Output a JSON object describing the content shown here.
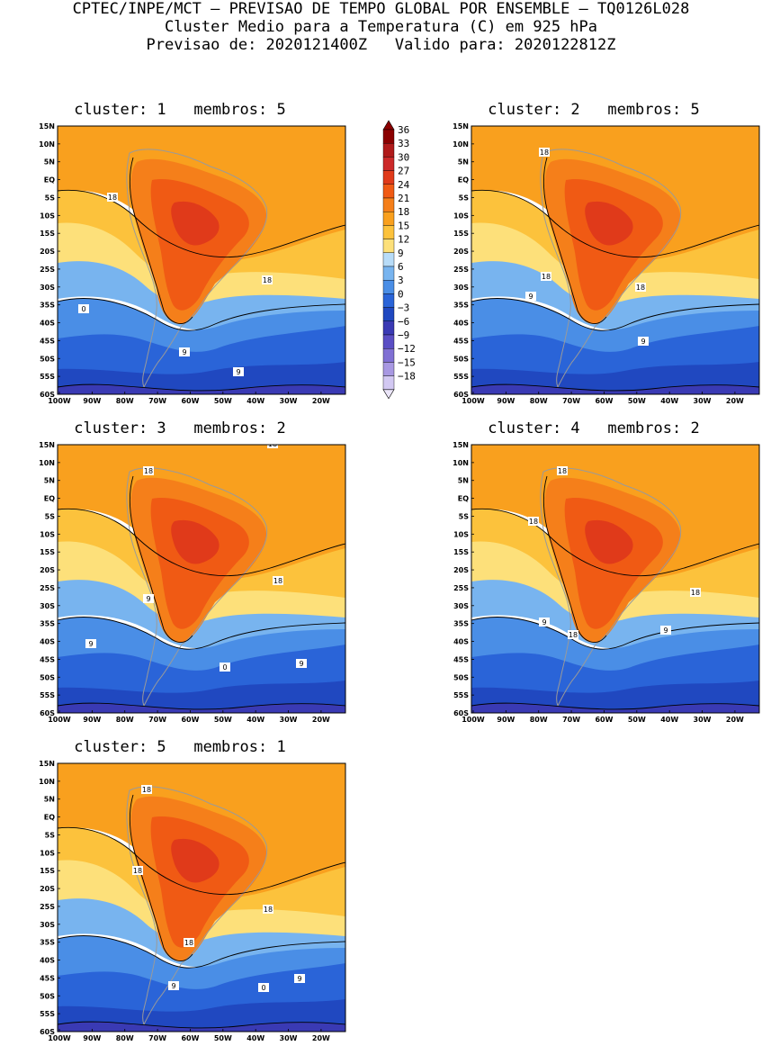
{
  "header": {
    "line1": "CPTEC/INPE/MCT — PREVISAO DE TEMPO GLOBAL POR ENSEMBLE — TQ0126L028",
    "line2": "Cluster Medio para a Temperatura (C) em 925 hPa",
    "line3": "Previsao de: 2020121400Z   Valido para: 2020122812Z"
  },
  "axes": {
    "lat_labels": [
      "15N",
      "10N",
      "5N",
      "EQ",
      "5S",
      "10S",
      "15S",
      "20S",
      "25S",
      "30S",
      "35S",
      "40S",
      "45S",
      "50S",
      "55S",
      "60S"
    ],
    "lon_labels": [
      "100W",
      "90W",
      "80W",
      "70W",
      "60W",
      "50W",
      "40W",
      "30W",
      "20W"
    ]
  },
  "colorbar": {
    "levels": [
      "36",
      "33",
      "30",
      "27",
      "24",
      "21",
      "18",
      "15",
      "12",
      "9",
      "6",
      "3",
      "0",
      "−3",
      "−6",
      "−9",
      "−12",
      "−15",
      "−18"
    ],
    "colors": [
      "#8b0000",
      "#b01a1a",
      "#cc2a2a",
      "#e03a1a",
      "#f05a14",
      "#f57f1a",
      "#f9a01e",
      "#fcc23c",
      "#fde07a",
      "#b8dcf8",
      "#78b4ef",
      "#4a8ee6",
      "#2a64d8",
      "#2048c0",
      "#3a3ab4",
      "#5a4ec4",
      "#8070d4",
      "#a898e2",
      "#d2c8f2"
    ]
  },
  "clusters": [
    {
      "title": "cluster: 1   membros: 5",
      "contours": [
        "18",
        "18",
        "9",
        "9",
        "0"
      ]
    },
    {
      "title": "cluster: 2   membros: 5",
      "contours": [
        "18",
        "18",
        "18",
        "9",
        "9"
      ]
    },
    {
      "title": "cluster: 3   membros: 2",
      "contours": [
        "18",
        "18",
        "18",
        "9",
        "9",
        "9",
        "0"
      ]
    },
    {
      "title": "cluster: 4   membros: 2",
      "contours": [
        "18",
        "18",
        "18",
        "9",
        "9",
        "18"
      ]
    },
    {
      "title": "cluster: 5   membros: 1",
      "contours": [
        "18",
        "18",
        "18",
        "18",
        "9",
        "9",
        "0"
      ]
    }
  ]
}
